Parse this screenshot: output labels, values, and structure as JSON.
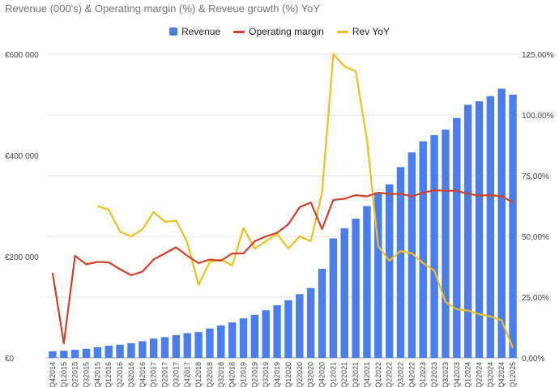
{
  "colors": {
    "revenue": "#4a7ee8",
    "margin": "#d0402a",
    "yoy": "#f0bf1d",
    "grid": "#e3e3e3"
  },
  "chart_data": {
    "type": "bar",
    "title": "Revenue (000's) & Operating margin (%) & Reveue growth (%) YoY",
    "legend_position": "top",
    "grid": true,
    "categories": [
      "Q42014",
      "Q12015",
      "Q22015",
      "Q32015",
      "Q42015",
      "Q12016",
      "Q22016",
      "Q32016",
      "Q42016",
      "Q12017",
      "Q22017",
      "Q32017",
      "Q42017",
      "Q12018",
      "Q22018",
      "Q32018",
      "Q42018",
      "Q12019",
      "Q22019",
      "Q32019",
      "Q42019",
      "Q12020",
      "Q22020",
      "Q32020",
      "Q42020",
      "Q12021",
      "Q22021",
      "Q32021",
      "Q42021",
      "Q12022",
      "Q22022",
      "Q32022",
      "Q42022",
      "Q12023",
      "Q22023",
      "Q32023",
      "Q42023",
      "Q12024",
      "Q22024",
      "Q32024",
      "Q42024",
      "Q12025"
    ],
    "y_left": {
      "ticks": [
        "€0",
        "€200 000",
        "€400 000",
        "€600 000"
      ],
      "range": [
        0,
        600000
      ]
    },
    "y_right": {
      "ticks": [
        "0,00%",
        "25,00%",
        "50,00%",
        "75,00%",
        "100,00%",
        "125,00%"
      ],
      "range": [
        0,
        125
      ]
    },
    "series": [
      {
        "name": "Revenue",
        "type": "bar",
        "axis": "left",
        "values": [
          13000,
          14000,
          16000,
          18000,
          21000,
          24000,
          26000,
          29000,
          33000,
          38000,
          41000,
          45000,
          49000,
          51000,
          58000,
          64000,
          70000,
          78000,
          85000,
          94000,
          104000,
          114000,
          126000,
          138000,
          176000,
          236000,
          256000,
          275000,
          300000,
          327000,
          343000,
          377000,
          406000,
          428000,
          440000,
          451000,
          474000,
          500000,
          507000,
          517000,
          532000,
          520000
        ]
      },
      {
        "name": "Operating margin",
        "type": "line",
        "axis": "right",
        "values": [
          35,
          6,
          42,
          38.5,
          39.5,
          39.3,
          36.5,
          34,
          35.5,
          40.5,
          43,
          45.5,
          42,
          39,
          40.5,
          40,
          43,
          43,
          48,
          50,
          51.5,
          55,
          62,
          64,
          53,
          65,
          65.5,
          67,
          66.5,
          68,
          67.5,
          67.5,
          66.5,
          68,
          69,
          68.8,
          68.8,
          67.5,
          66.8,
          67,
          66.5,
          64
        ]
      },
      {
        "name": "Rev YoY",
        "type": "line",
        "axis": "right",
        "values": [
          null,
          null,
          null,
          null,
          62.5,
          61,
          52,
          50,
          53,
          60,
          56,
          56.5,
          47.5,
          30,
          39.5,
          40.5,
          38,
          53.5,
          45,
          48,
          51,
          45,
          50,
          48,
          68,
          125,
          120,
          118,
          90,
          46,
          40,
          44,
          43,
          39,
          36,
          23,
          20,
          19.5,
          18,
          17,
          15.5,
          4
        ]
      }
    ]
  }
}
